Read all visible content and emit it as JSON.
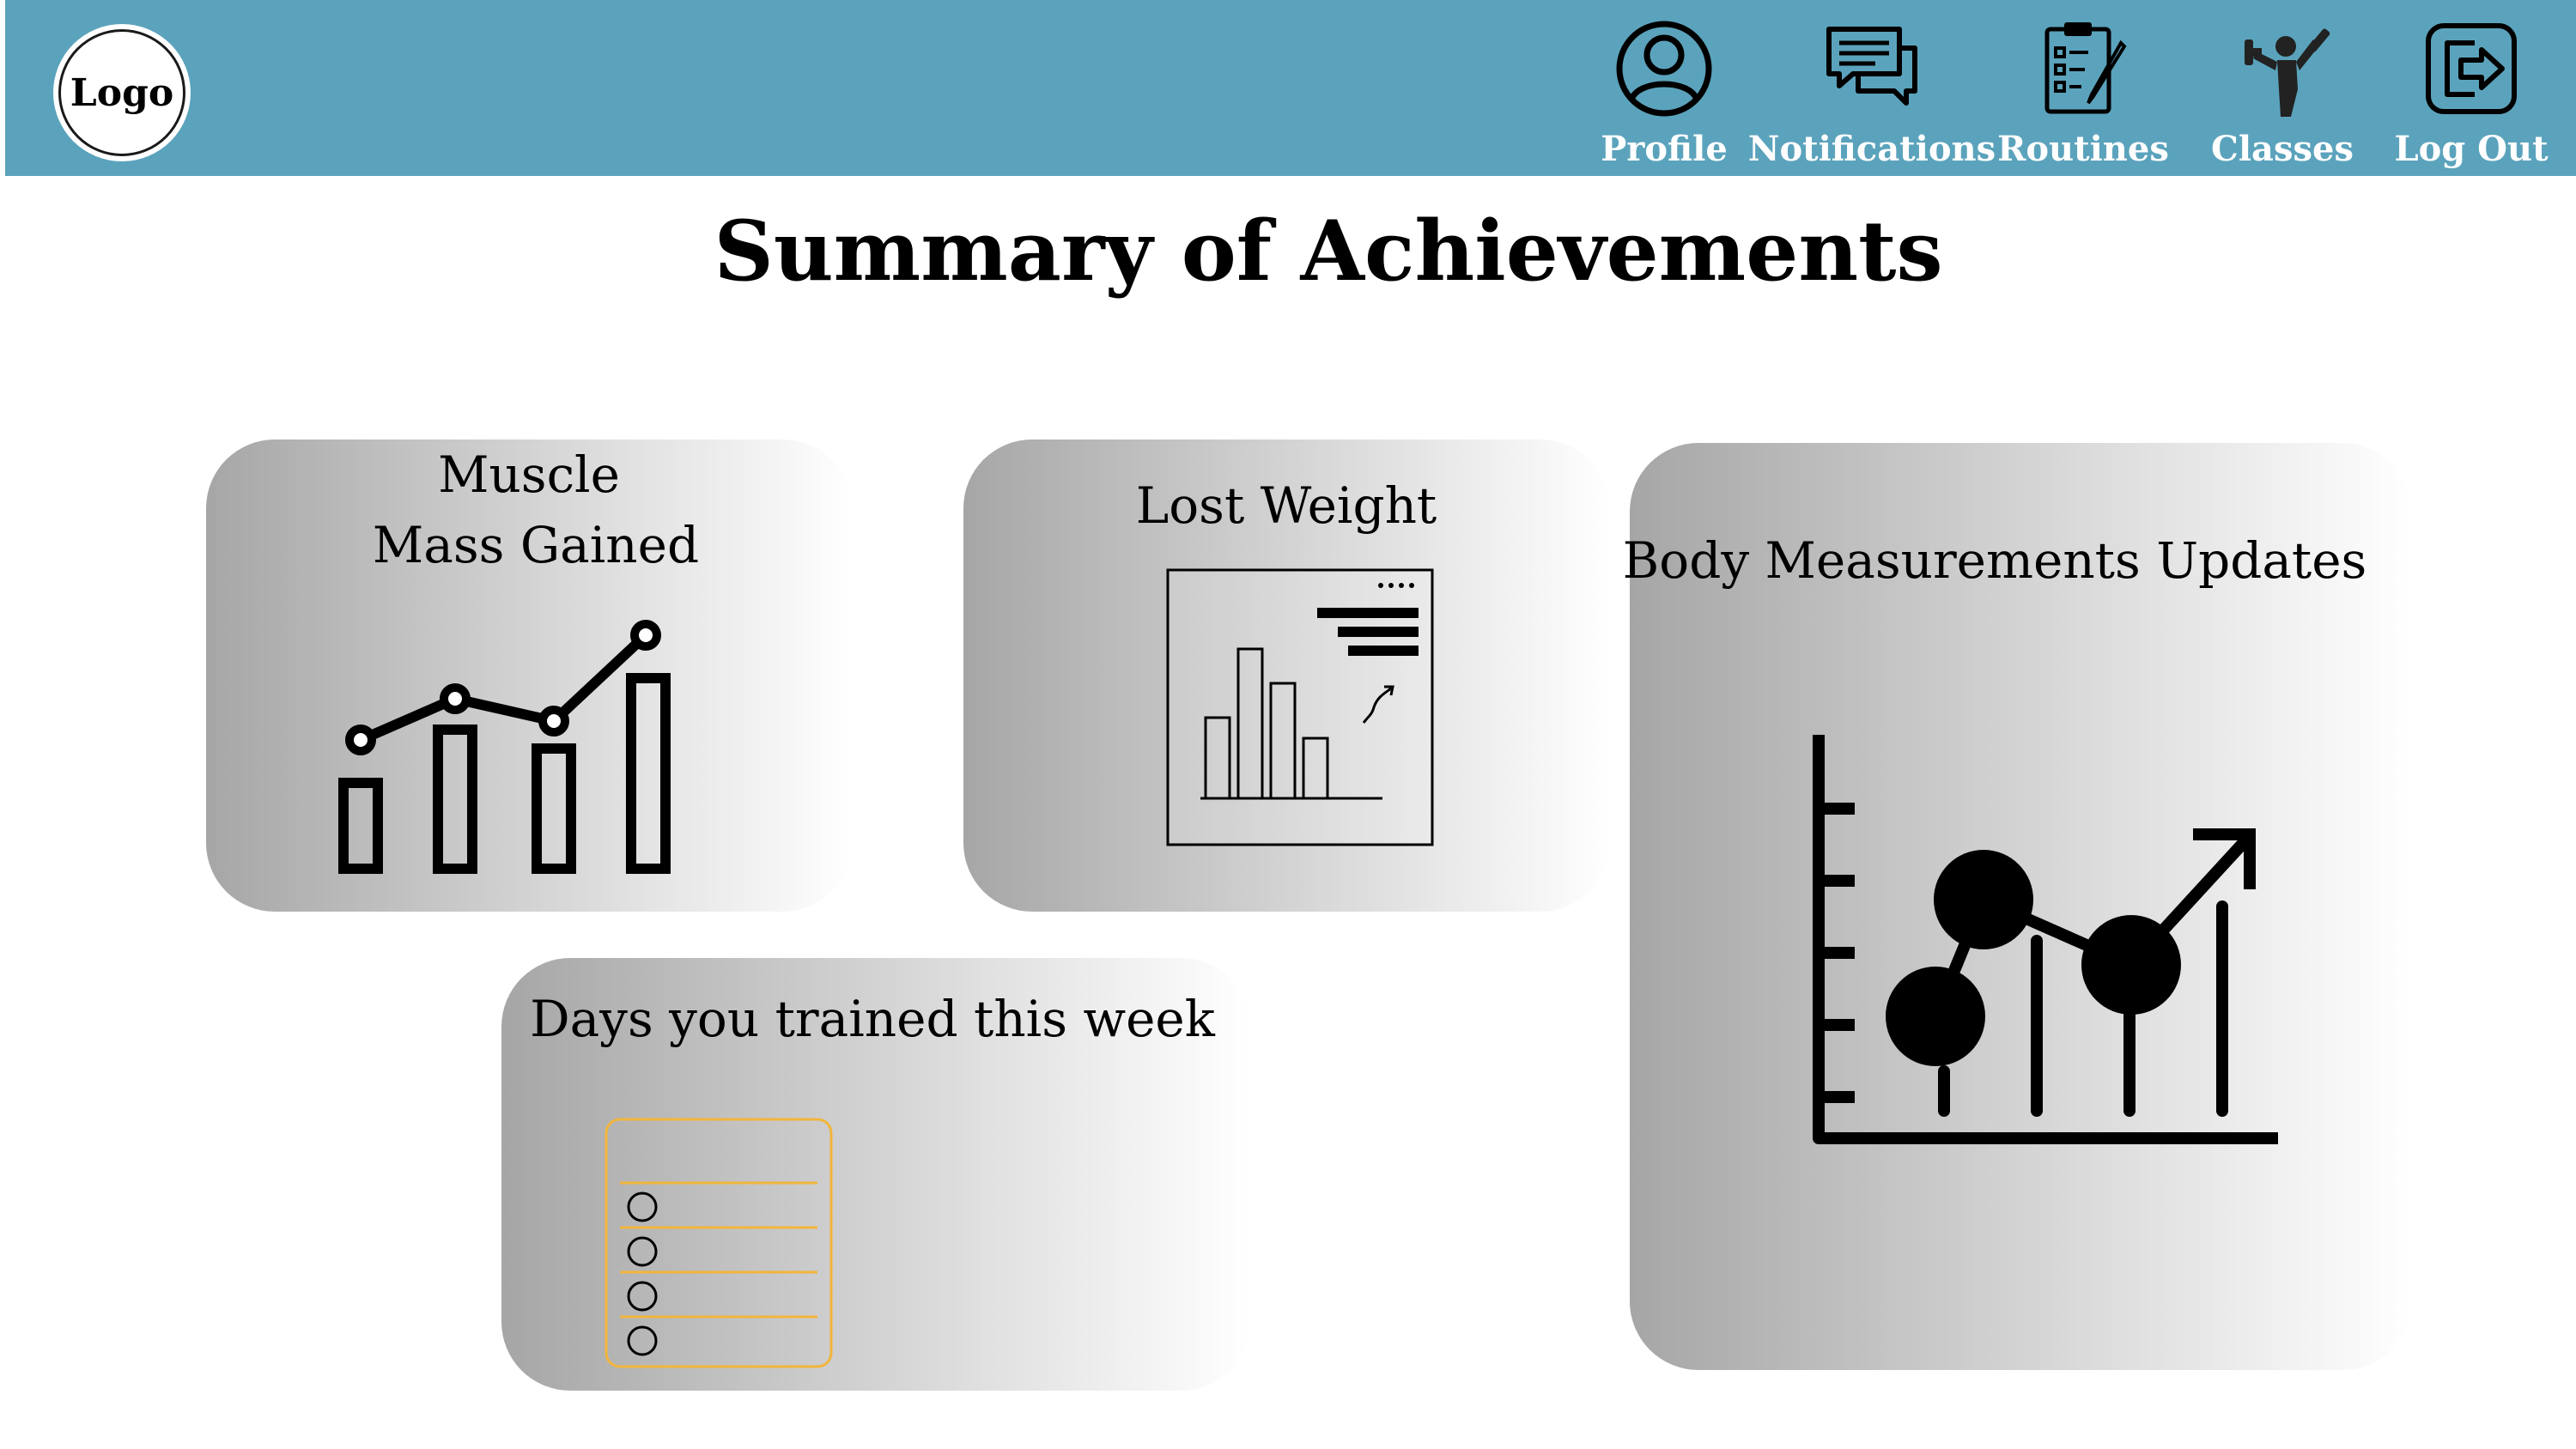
{
  "header": {
    "logo_text": "Logo",
    "nav": [
      {
        "label": "Profile",
        "icon": "user-circle-icon"
      },
      {
        "label": "Notifications",
        "icon": "chat-bubbles-icon"
      },
      {
        "label": "Routines",
        "icon": "clipboard-checklist-icon"
      },
      {
        "label": "Classes",
        "icon": "weightlifter-icon"
      },
      {
        "label": "Log Out",
        "icon": "logout-icon"
      }
    ],
    "color": "#5ba3bc"
  },
  "page_title": "Summary of Achievements",
  "cards": {
    "muscle": {
      "title_line1": "Muscle",
      "title_line2": "Mass Gained",
      "icon": "bar-line-chart-icon"
    },
    "weight": {
      "title": "Lost Weight",
      "icon": "report-chart-icon"
    },
    "body": {
      "title": "Body Measurements Updates",
      "icon": "growth-chart-icon"
    },
    "days": {
      "title": "Days you trained this week",
      "icon": "checklist-icon"
    }
  },
  "accent_color": "#f2b53c"
}
